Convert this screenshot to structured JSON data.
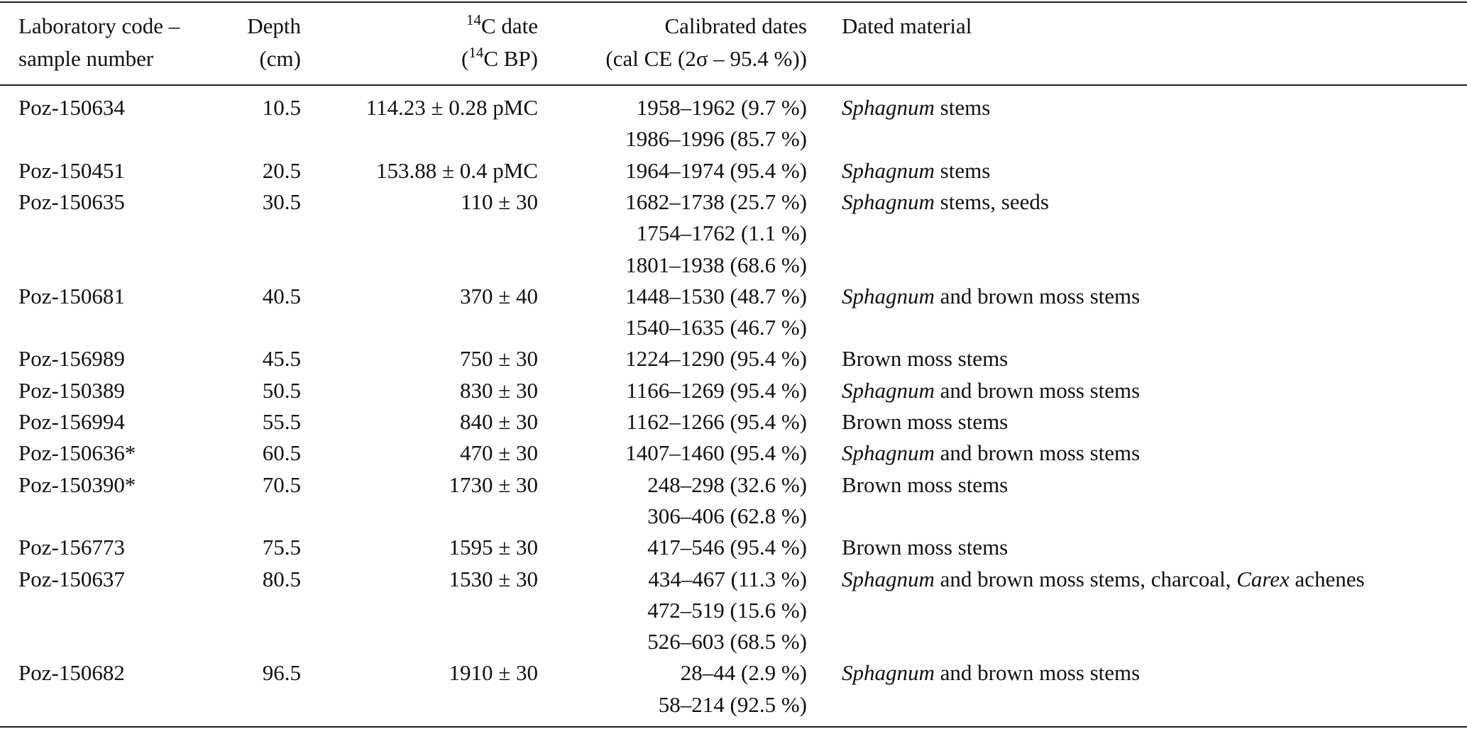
{
  "table": {
    "header": {
      "code": [
        "Laboratory code –",
        "sample number"
      ],
      "depth": [
        "Depth",
        "(cm)"
      ],
      "date": [
        {
          "sup": "14",
          "text": "C date"
        },
        {
          "pre": "(",
          "sup": "14",
          "text": "C BP)"
        }
      ],
      "calibrated": [
        "Calibrated dates",
        "(cal CE (2σ – 95.4 %))"
      ],
      "material": [
        "Dated material"
      ]
    },
    "rows": [
      {
        "code": "Poz-150634",
        "depth": 10.5,
        "date": "114.23 ± 0.28 pMC",
        "calibrated": [
          "1958–1962 (9.7 %)",
          "1986–1996 (85.7 %)"
        ],
        "material": [
          {
            "text": "Sphagnum",
            "italic": true
          },
          {
            "text": " stems"
          }
        ]
      },
      {
        "code": "Poz-150451",
        "depth": 20.5,
        "date": "153.88 ± 0.4 pMC",
        "calibrated": [
          "1964–1974 (95.4 %)"
        ],
        "material": [
          {
            "text": "Sphagnum",
            "italic": true
          },
          {
            "text": " stems"
          }
        ]
      },
      {
        "code": "Poz-150635",
        "depth": 30.5,
        "date": "110 ± 30",
        "calibrated": [
          "1682–1738 (25.7 %)",
          "1754–1762 (1.1 %)",
          "1801–1938 (68.6 %)"
        ],
        "material": [
          {
            "text": "Sphagnum",
            "italic": true
          },
          {
            "text": " stems, seeds"
          }
        ]
      },
      {
        "code": "Poz-150681",
        "depth": 40.5,
        "date": "370 ± 40",
        "calibrated": [
          "1448–1530 (48.7 %)",
          "1540–1635 (46.7 %)"
        ],
        "material": [
          {
            "text": "Sphagnum",
            "italic": true
          },
          {
            "text": " and brown moss stems"
          }
        ]
      },
      {
        "code": "Poz-156989",
        "depth": 45.5,
        "date": "750 ± 30",
        "calibrated": [
          "1224–1290 (95.4 %)"
        ],
        "material": [
          {
            "text": "Brown moss stems"
          }
        ]
      },
      {
        "code": "Poz-150389",
        "depth": 50.5,
        "date": "830 ± 30",
        "calibrated": [
          "1166–1269 (95.4 %)"
        ],
        "material": [
          {
            "text": "Sphagnum",
            "italic": true
          },
          {
            "text": " and brown moss stems"
          }
        ]
      },
      {
        "code": "Poz-156994",
        "depth": 55.5,
        "date": "840 ± 30",
        "calibrated": [
          "1162–1266 (95.4 %)"
        ],
        "material": [
          {
            "text": "Brown moss stems"
          }
        ]
      },
      {
        "code": "Poz-150636*",
        "depth": 60.5,
        "date": "470 ± 30",
        "calibrated": [
          "1407–1460 (95.4 %)"
        ],
        "material": [
          {
            "text": "Sphagnum",
            "italic": true
          },
          {
            "text": " and brown moss stems"
          }
        ]
      },
      {
        "code": "Poz-150390*",
        "depth": 70.5,
        "date": "1730 ± 30",
        "calibrated": [
          "248–298 (32.6 %)",
          "306–406 (62.8 %)"
        ],
        "material": [
          {
            "text": "Brown moss stems"
          }
        ]
      },
      {
        "code": "Poz-156773",
        "depth": 75.5,
        "date": "1595 ± 30",
        "calibrated": [
          "417–546 (95.4 %)"
        ],
        "material": [
          {
            "text": "Brown moss stems"
          }
        ]
      },
      {
        "code": "Poz-150637",
        "depth": 80.5,
        "date": "1530 ± 30",
        "calibrated": [
          "434–467 (11.3 %)",
          "472–519 (15.6 %)",
          "526–603 (68.5 %)"
        ],
        "material": [
          {
            "text": "Sphagnum",
            "italic": true
          },
          {
            "text": " and brown moss stems, charcoal, "
          },
          {
            "text": "Carex",
            "italic": true
          },
          {
            "text": " achenes"
          }
        ]
      },
      {
        "code": "Poz-150682",
        "depth": 96.5,
        "date": "1910 ± 30",
        "calibrated": [
          "28–44 (2.9 %)",
          "58–214 (92.5 %)"
        ],
        "material": [
          {
            "text": "Sphagnum",
            "italic": true
          },
          {
            "text": " and brown moss stems"
          }
        ]
      }
    ]
  }
}
